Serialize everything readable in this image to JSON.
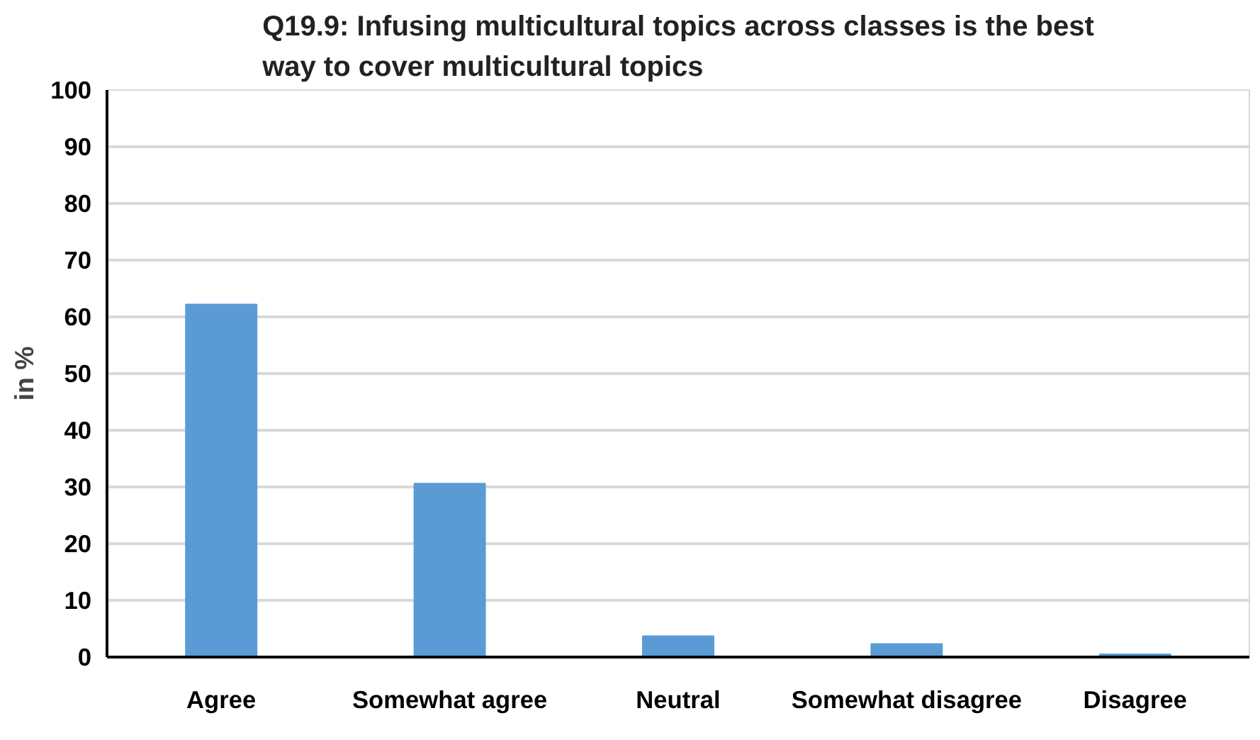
{
  "chart_data": {
    "type": "bar",
    "title": "Q19.9: Infusing multicultural topics across classes is the best\nway to cover multicultural topics",
    "ylabel": "in %",
    "categories": [
      "Agree",
      "Somewhat agree",
      "Neutral",
      "Somewhat disagree",
      "Disagree"
    ],
    "values": [
      62.2,
      30.6,
      3.7,
      2.3,
      0.5
    ],
    "color": "#5b9bd5",
    "ylim": [
      0,
      100
    ],
    "yticks": [
      0,
      10,
      20,
      30,
      40,
      50,
      60,
      70,
      80,
      90,
      100
    ],
    "grid": "y"
  }
}
